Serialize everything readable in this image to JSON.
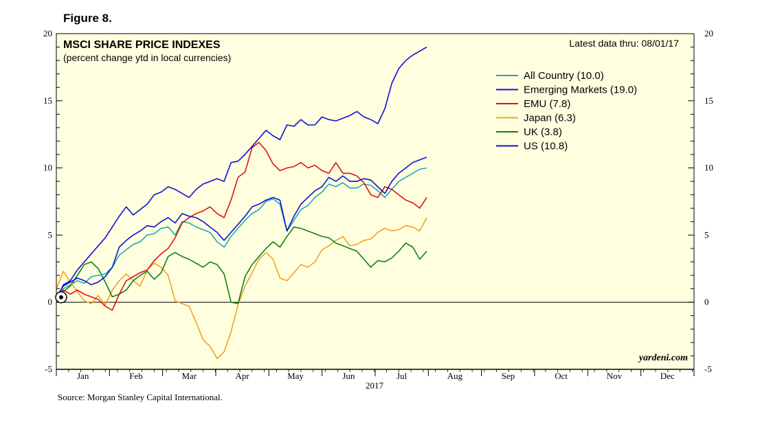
{
  "figure_label": "Figure 8.",
  "source_note": "Source: Morgan Stanley Capital International.",
  "colors": {
    "plot_bg": "#ffffe0",
    "all_country": "#1ca8b0",
    "emerging_markets": "#1010d0",
    "emu": "#e01010",
    "japan": "#f5a020",
    "uk": "#108010",
    "us": "#1010d0"
  },
  "chart_data": {
    "type": "line",
    "title": "MSCI SHARE PRICE INDEXES",
    "subtitle": "(percent change ytd in local currencies)",
    "annotation": "Latest data thru: 08/01/17",
    "watermark": "yardeni.com",
    "xlabel": "2017",
    "ylabel": "",
    "ylim": [
      -5,
      20
    ],
    "xlim": [
      0,
      365
    ],
    "y_ticks": [
      "-5",
      "0",
      "5",
      "10",
      "15",
      "20"
    ],
    "y_tick_values": [
      -5,
      0,
      5,
      10,
      15,
      20
    ],
    "month_labels": [
      "Jan",
      "Feb",
      "Mar",
      "Apr",
      "May",
      "Jun",
      "Jul",
      "Aug",
      "Sep",
      "Oct",
      "Nov",
      "Dec"
    ],
    "legend_position": "top-right",
    "series": [
      {
        "name": "All Country (10.0)",
        "color_key": "all_country",
        "x": [
          0,
          4,
          8,
          12,
          16,
          20,
          24,
          28,
          32,
          36,
          40,
          44,
          48,
          52,
          56,
          60,
          64,
          68,
          72,
          76,
          80,
          84,
          88,
          92,
          96,
          100,
          104,
          108,
          112,
          116,
          120,
          124,
          128,
          132,
          136,
          140,
          144,
          148,
          152,
          156,
          160,
          164,
          168,
          172,
          176,
          180,
          184,
          188,
          192,
          196,
          200,
          204,
          208,
          212
        ],
        "y": [
          0.3,
          1.0,
          1.3,
          1.6,
          1.4,
          1.9,
          2.0,
          2.1,
          2.6,
          3.5,
          3.9,
          4.3,
          4.5,
          5.0,
          5.1,
          5.5,
          5.6,
          5.0,
          6.0,
          5.9,
          5.6,
          5.4,
          5.2,
          4.5,
          4.1,
          4.9,
          5.5,
          6.1,
          6.6,
          6.9,
          7.5,
          7.7,
          7.3,
          5.3,
          6.1,
          6.9,
          7.2,
          7.8,
          8.2,
          8.8,
          8.6,
          8.9,
          8.5,
          8.5,
          8.8,
          8.7,
          8.3,
          7.8,
          8.4,
          9.0,
          9.3,
          9.6,
          9.9,
          10.0
        ]
      },
      {
        "name": "Emerging Markets (19.0)",
        "color_key": "emerging_markets",
        "x": [
          0,
          4,
          8,
          12,
          16,
          20,
          24,
          28,
          32,
          36,
          40,
          44,
          48,
          52,
          56,
          60,
          64,
          68,
          72,
          76,
          80,
          84,
          88,
          92,
          96,
          100,
          104,
          108,
          112,
          116,
          120,
          124,
          128,
          132,
          136,
          140,
          144,
          148,
          152,
          156,
          160,
          164,
          168,
          172,
          176,
          180,
          184,
          188,
          192,
          196,
          200,
          204,
          208,
          212
        ],
        "y": [
          0.2,
          1.3,
          1.6,
          2.4,
          3.0,
          3.6,
          4.2,
          4.8,
          5.6,
          6.4,
          7.1,
          6.5,
          6.9,
          7.3,
          8.0,
          8.2,
          8.6,
          8.4,
          8.1,
          7.8,
          8.4,
          8.8,
          9.0,
          9.2,
          9.0,
          10.4,
          10.5,
          11.0,
          11.6,
          12.2,
          12.8,
          12.4,
          12.1,
          13.2,
          13.1,
          13.6,
          13.2,
          13.2,
          13.8,
          13.6,
          13.5,
          13.7,
          13.9,
          14.2,
          13.8,
          13.6,
          13.3,
          14.4,
          16.3,
          17.4,
          18.0,
          18.4,
          18.7,
          19.0
        ]
      },
      {
        "name": "EMU (7.8)",
        "color_key": "emu",
        "x": [
          0,
          4,
          8,
          12,
          16,
          20,
          24,
          28,
          32,
          36,
          40,
          44,
          48,
          52,
          56,
          60,
          64,
          68,
          72,
          76,
          80,
          84,
          88,
          92,
          96,
          100,
          104,
          108,
          112,
          116,
          120,
          124,
          128,
          132,
          136,
          140,
          144,
          148,
          152,
          156,
          160,
          164,
          168,
          172,
          176,
          180,
          184,
          188,
          192,
          196,
          200,
          204,
          208,
          212
        ],
        "y": [
          0.4,
          0.9,
          0.6,
          0.9,
          0.6,
          0.4,
          0.2,
          -0.3,
          -0.6,
          0.6,
          1.6,
          1.9,
          2.2,
          2.4,
          3.1,
          3.6,
          4.0,
          4.8,
          5.9,
          6.3,
          6.6,
          6.8,
          7.1,
          6.6,
          6.3,
          7.6,
          9.3,
          9.7,
          11.5,
          11.9,
          11.3,
          10.3,
          9.8,
          10.0,
          10.1,
          10.4,
          10.0,
          10.2,
          9.8,
          9.6,
          10.4,
          9.6,
          9.6,
          9.4,
          8.9,
          8.0,
          7.8,
          8.6,
          8.4,
          8.0,
          7.6,
          7.4,
          7.0,
          7.8
        ]
      },
      {
        "name": "Japan (6.3)",
        "color_key": "japan",
        "x": [
          0,
          4,
          8,
          12,
          16,
          20,
          24,
          28,
          32,
          36,
          40,
          44,
          48,
          52,
          56,
          60,
          64,
          68,
          72,
          76,
          80,
          84,
          88,
          92,
          96,
          100,
          104,
          108,
          112,
          116,
          120,
          124,
          128,
          132,
          136,
          140,
          144,
          148,
          152,
          156,
          160,
          164,
          168,
          172,
          176,
          180,
          184,
          188,
          192,
          196,
          200,
          204,
          208,
          212
        ],
        "y": [
          1.0,
          2.3,
          1.5,
          0.8,
          0.1,
          -0.1,
          0.5,
          -0.2,
          0.9,
          1.6,
          2.1,
          1.6,
          1.2,
          2.4,
          2.9,
          2.6,
          2.0,
          0.1,
          -0.1,
          -0.3,
          -1.5,
          -2.8,
          -3.3,
          -4.2,
          -3.7,
          -2.2,
          -0.2,
          1.2,
          2.2,
          3.2,
          3.7,
          3.2,
          1.8,
          1.6,
          2.2,
          2.8,
          2.6,
          3.0,
          3.9,
          4.2,
          4.6,
          4.9,
          4.2,
          4.3,
          4.6,
          4.7,
          5.2,
          5.5,
          5.3,
          5.4,
          5.7,
          5.6,
          5.3,
          6.3
        ]
      },
      {
        "name": "UK (3.8)",
        "color_key": "uk",
        "x": [
          0,
          4,
          8,
          12,
          16,
          20,
          24,
          28,
          32,
          36,
          40,
          44,
          48,
          52,
          56,
          60,
          64,
          68,
          72,
          76,
          80,
          84,
          88,
          92,
          96,
          100,
          104,
          108,
          112,
          116,
          120,
          124,
          128,
          132,
          136,
          140,
          144,
          148,
          152,
          156,
          160,
          164,
          168,
          172,
          176,
          180,
          184,
          188,
          192,
          196,
          200,
          204,
          208,
          212
        ],
        "y": [
          0.4,
          0.8,
          1.2,
          2.0,
          2.8,
          3.0,
          2.5,
          1.5,
          0.4,
          0.6,
          0.9,
          1.6,
          2.0,
          2.3,
          1.7,
          2.2,
          3.4,
          3.7,
          3.4,
          3.2,
          2.9,
          2.6,
          3.0,
          2.8,
          2.1,
          0.0,
          -0.1,
          1.9,
          2.8,
          3.4,
          4.0,
          4.5,
          4.1,
          4.9,
          5.6,
          5.5,
          5.3,
          5.1,
          4.9,
          4.8,
          4.4,
          4.2,
          4.0,
          3.8,
          3.2,
          2.6,
          3.1,
          3.0,
          3.3,
          3.8,
          4.4,
          4.1,
          3.2,
          3.8
        ]
      },
      {
        "name": "US (10.8)",
        "color_key": "us",
        "x": [
          0,
          4,
          8,
          12,
          16,
          20,
          24,
          28,
          32,
          36,
          40,
          44,
          48,
          52,
          56,
          60,
          64,
          68,
          72,
          76,
          80,
          84,
          88,
          92,
          96,
          100,
          104,
          108,
          112,
          116,
          120,
          124,
          128,
          132,
          136,
          140,
          144,
          148,
          152,
          156,
          160,
          164,
          168,
          172,
          176,
          180,
          184,
          188,
          192,
          196,
          200,
          204,
          208,
          212
        ],
        "y": [
          0.4,
          1.2,
          1.5,
          1.8,
          1.6,
          1.3,
          1.5,
          1.9,
          2.6,
          4.1,
          4.6,
          5.0,
          5.3,
          5.7,
          5.6,
          6.0,
          6.3,
          5.9,
          6.6,
          6.4,
          6.3,
          6.0,
          5.6,
          5.2,
          4.6,
          5.2,
          5.8,
          6.4,
          7.1,
          7.3,
          7.6,
          7.8,
          7.6,
          5.3,
          6.4,
          7.3,
          7.8,
          8.3,
          8.6,
          9.3,
          9.0,
          9.4,
          9.0,
          9.0,
          9.2,
          9.1,
          8.6,
          8.1,
          9.0,
          9.6,
          10.0,
          10.4,
          10.6,
          10.8
        ]
      }
    ]
  }
}
